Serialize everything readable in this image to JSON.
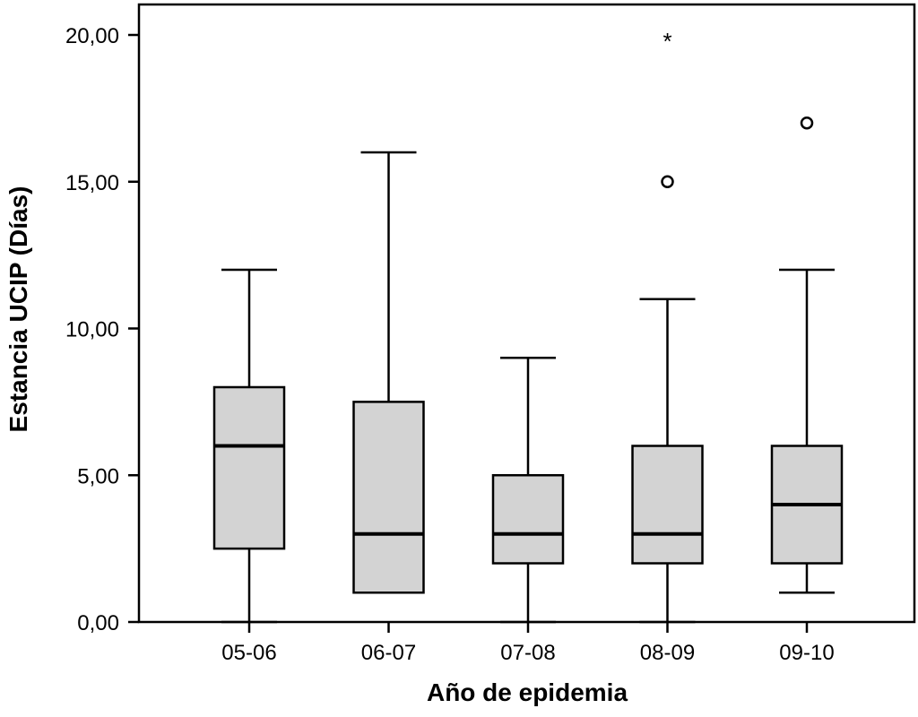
{
  "chart_data": {
    "type": "boxplot",
    "xlabel": "Año de epidemia",
    "ylabel": "Estancia UCIP (Días)",
    "ylim": [
      0,
      21.1
    ],
    "yticks": [
      {
        "value": 0,
        "label": "0,00"
      },
      {
        "value": 5,
        "label": "5,00"
      },
      {
        "value": 10,
        "label": "10,00"
      },
      {
        "value": 15,
        "label": "15,00"
      },
      {
        "value": 20,
        "label": "20,00"
      }
    ],
    "box_color": "#d3d3d3",
    "grid": false,
    "categories": [
      "05-06",
      "06-07",
      "07-08",
      "08-09",
      "09-10"
    ],
    "boxes": [
      {
        "category": "05-06",
        "whisker_low": 0,
        "q1": 2.5,
        "median": 6,
        "q3": 8,
        "whisker_high": 12,
        "outliers": [],
        "extremes": []
      },
      {
        "category": "06-07",
        "whisker_low": 1,
        "q1": 1,
        "median": 3,
        "q3": 7.5,
        "whisker_high": 16,
        "outliers": [],
        "extremes": []
      },
      {
        "category": "07-08",
        "whisker_low": 0,
        "q1": 2,
        "median": 3,
        "q3": 5,
        "whisker_high": 9,
        "outliers": [],
        "extremes": []
      },
      {
        "category": "08-09",
        "whisker_low": 0,
        "q1": 2,
        "median": 3,
        "q3": 6,
        "whisker_high": 11,
        "outliers": [
          15
        ],
        "extremes": [
          20
        ]
      },
      {
        "category": "09-10",
        "whisker_low": 1,
        "q1": 2,
        "median": 4,
        "q3": 6,
        "whisker_high": 12,
        "outliers": [
          17
        ],
        "extremes": []
      }
    ]
  }
}
